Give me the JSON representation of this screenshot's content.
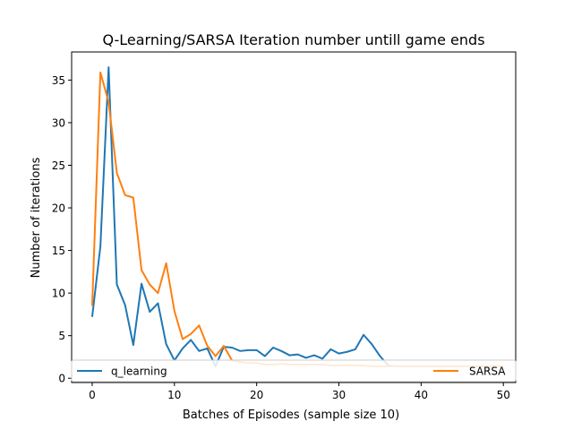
{
  "chart_data": {
    "type": "line",
    "title": "Q-Learning/SARSA Iteration number untill game ends",
    "xlabel": "Batches of Episodes (sample size 10)",
    "ylabel": "Number of iterations",
    "xlim": [
      -2.5,
      51.5
    ],
    "ylim": [
      -0.5,
      38.3
    ],
    "x_ticks": [
      0,
      10,
      20,
      30,
      40,
      50
    ],
    "y_ticks": [
      0,
      5,
      10,
      15,
      20,
      25,
      30,
      35
    ],
    "grid": false,
    "legend_position": "bottom",
    "series": [
      {
        "name": "q_learning",
        "color": "#1f77b4",
        "x": [
          0,
          1,
          2,
          3,
          4,
          5,
          6,
          7,
          8,
          9,
          10,
          11,
          12,
          13,
          14,
          15,
          16,
          17,
          18,
          19,
          20,
          21,
          22,
          23,
          24,
          25,
          26,
          27,
          28,
          29,
          30,
          31,
          32,
          33,
          34,
          35,
          36,
          37,
          38,
          39,
          40,
          41,
          42,
          43,
          44,
          45,
          46,
          47,
          48,
          49,
          50
        ],
        "values": [
          7.2,
          15.5,
          36.5,
          11.0,
          8.6,
          3.9,
          11.1,
          7.8,
          8.8,
          4.0,
          2.1,
          3.5,
          4.5,
          3.2,
          3.5,
          1.4,
          3.7,
          3.6,
          3.2,
          3.3,
          3.3,
          2.6,
          3.6,
          3.2,
          2.7,
          2.8,
          2.4,
          2.7,
          2.3,
          3.4,
          2.9,
          3.1,
          3.4,
          5.1,
          4.0,
          2.6,
          1.5,
          1.4,
          1.4,
          1.4,
          1.4,
          1.4,
          1.4,
          1.4,
          1.4,
          1.4,
          1.4,
          1.4,
          1.4,
          1.4,
          1.4
        ]
      },
      {
        "name": "SARSA",
        "color": "#ff7f0e",
        "x": [
          0,
          1,
          2,
          3,
          4,
          5,
          6,
          7,
          8,
          9,
          10,
          11,
          12,
          13,
          14,
          15,
          16,
          17,
          18,
          19,
          20,
          21,
          22,
          23,
          24,
          25,
          26,
          27,
          28,
          29,
          30,
          31,
          32,
          33,
          34,
          35,
          36,
          37,
          38,
          39,
          40,
          41,
          42,
          43,
          44,
          45,
          46,
          47,
          48,
          49,
          50
        ],
        "values": [
          8.5,
          35.9,
          32.4,
          24.1,
          21.5,
          21.2,
          12.7,
          11.0,
          10.0,
          13.5,
          7.9,
          4.6,
          5.2,
          6.2,
          3.8,
          2.6,
          3.8,
          2.1,
          1.9,
          1.8,
          1.8,
          1.6,
          1.6,
          1.7,
          1.6,
          1.6,
          1.6,
          1.6,
          1.6,
          1.5,
          1.5,
          1.5,
          1.5,
          1.5,
          1.4,
          1.4,
          1.4,
          1.4,
          1.4,
          1.4,
          1.4,
          1.4,
          1.4,
          1.4,
          1.4,
          1.4,
          1.4,
          1.4,
          1.4,
          1.4,
          1.4
        ]
      }
    ]
  }
}
